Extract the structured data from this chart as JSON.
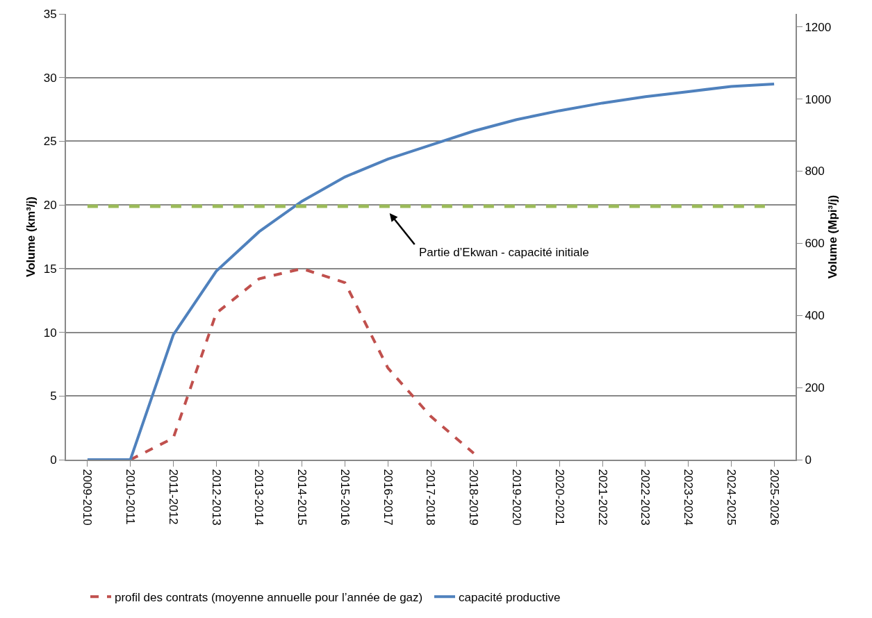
{
  "chart_data": {
    "type": "line",
    "ylabel": "Volume (km³/j)",
    "y2label": "Volume (Mpi³/j)",
    "categories": [
      "2009-2010",
      "2010-2011",
      "2011-2012",
      "2012-2013",
      "2013-2014",
      "2014-2015",
      "2015-2016",
      "2016-2017",
      "2017-2018",
      "2018-2019",
      "2019-2020",
      "2020-2021",
      "2021-2022",
      "2022-2023",
      "2023-2024",
      "2024-2025",
      "2025-2026"
    ],
    "series": [
      {
        "name": "profil des contrats (moyenne annuelle pour l’année de gaz)",
        "color": "#c0504d",
        "line_style": "dashed",
        "values": [
          null,
          0,
          1.7,
          11.5,
          14.2,
          15.0,
          13.9,
          7.2,
          3.4,
          0.5,
          null,
          null,
          null,
          null,
          null,
          null,
          null
        ]
      },
      {
        "name": "capacité productive",
        "color": "#4f81bd",
        "line_style": "solid",
        "values": [
          0,
          0,
          9.8,
          14.8,
          17.9,
          20.3,
          22.2,
          23.6,
          24.7,
          25.8,
          26.7,
          27.4,
          28.0,
          28.5,
          28.9,
          29.3,
          29.5
        ]
      }
    ],
    "ref_lines": [
      {
        "axis": "y",
        "value": 19.9,
        "color": "#9bbb59",
        "line_style": "dashed"
      }
    ],
    "annotations": [
      "Partie d’Ekwan - capacité initiale"
    ],
    "ylim": [
      0,
      35
    ],
    "yticks": [
      0,
      5,
      10,
      15,
      20,
      25,
      30,
      35
    ],
    "y2lim": [
      0,
      1236
    ],
    "y2ticks": [
      0,
      200,
      400,
      600,
      800,
      1000,
      1200
    ],
    "grid": "y",
    "legend": "bottom"
  }
}
